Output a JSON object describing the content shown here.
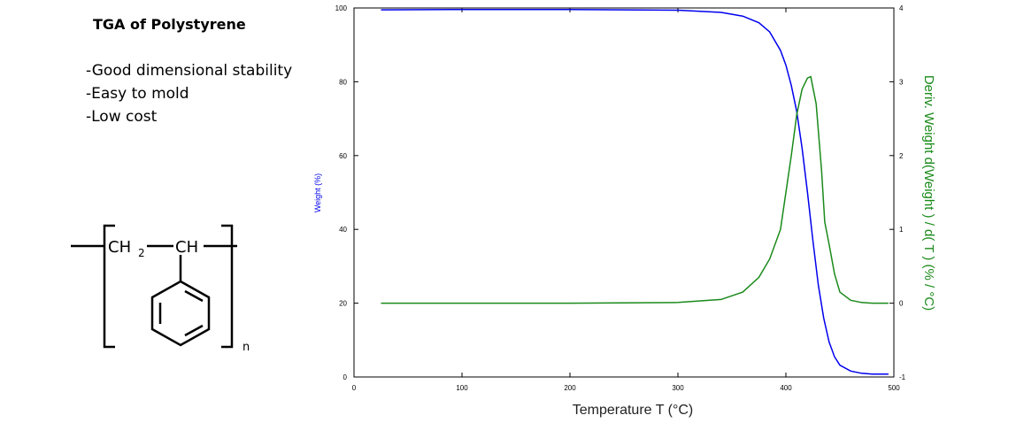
{
  "slide": {
    "title": "TGA of Polystyrene",
    "bullets": [
      "-Good dimensional stability",
      "-Easy to mold",
      "-Low cost"
    ]
  },
  "structure": {
    "ch2": "CH",
    "ch2_sub": "2",
    "ch": "CH",
    "repeat_sub": "n"
  },
  "colors": {
    "weight_series": "#0000ee",
    "deriv_series": "#1a8a1a",
    "axis": "#000000"
  },
  "chart_data": {
    "type": "line",
    "title": "",
    "xlabel": "Temperature T (°C)",
    "ylabel": "Weight (%)",
    "y2label": "Deriv. Weight d(Weight ) / d( T )  (% / °C)",
    "xlim": [
      0,
      500
    ],
    "ylim": [
      0,
      100
    ],
    "y2lim": [
      -1,
      4
    ],
    "xticks": [
      0,
      100,
      200,
      300,
      400,
      500
    ],
    "yticks": [
      0,
      20,
      40,
      60,
      80,
      100
    ],
    "y2ticks": [
      -1,
      0,
      1,
      2,
      3,
      4
    ],
    "grid": false,
    "series": [
      {
        "name": "Weight (%)",
        "axis": "left",
        "color": "#0000ee",
        "x": [
          25,
          100,
          200,
          300,
          340,
          360,
          375,
          385,
          395,
          400,
          405,
          410,
          415,
          420,
          425,
          430,
          435,
          440,
          445,
          450,
          460,
          470,
          480,
          495
        ],
        "y": [
          99.5,
          99.6,
          99.6,
          99.4,
          98.8,
          97.8,
          96.0,
          93.5,
          88.5,
          84.5,
          79.0,
          72.0,
          62.0,
          50.0,
          37.0,
          25.0,
          16.0,
          9.5,
          5.5,
          3.2,
          1.6,
          1.0,
          0.8,
          0.8
        ]
      },
      {
        "name": "Deriv. Weight",
        "axis": "right",
        "color": "#1a8a1a",
        "x": [
          25,
          100,
          200,
          300,
          340,
          360,
          375,
          385,
          395,
          400,
          405,
          410,
          415,
          420,
          423,
          428,
          433,
          436,
          440,
          445,
          450,
          460,
          470,
          480,
          495
        ],
        "y": [
          0.0,
          0.0,
          0.0,
          0.01,
          0.05,
          0.15,
          0.35,
          0.6,
          1.0,
          1.5,
          2.0,
          2.55,
          2.9,
          3.05,
          3.07,
          2.7,
          1.8,
          1.1,
          0.8,
          0.4,
          0.15,
          0.04,
          0.01,
          0.0,
          0.0
        ]
      }
    ]
  }
}
